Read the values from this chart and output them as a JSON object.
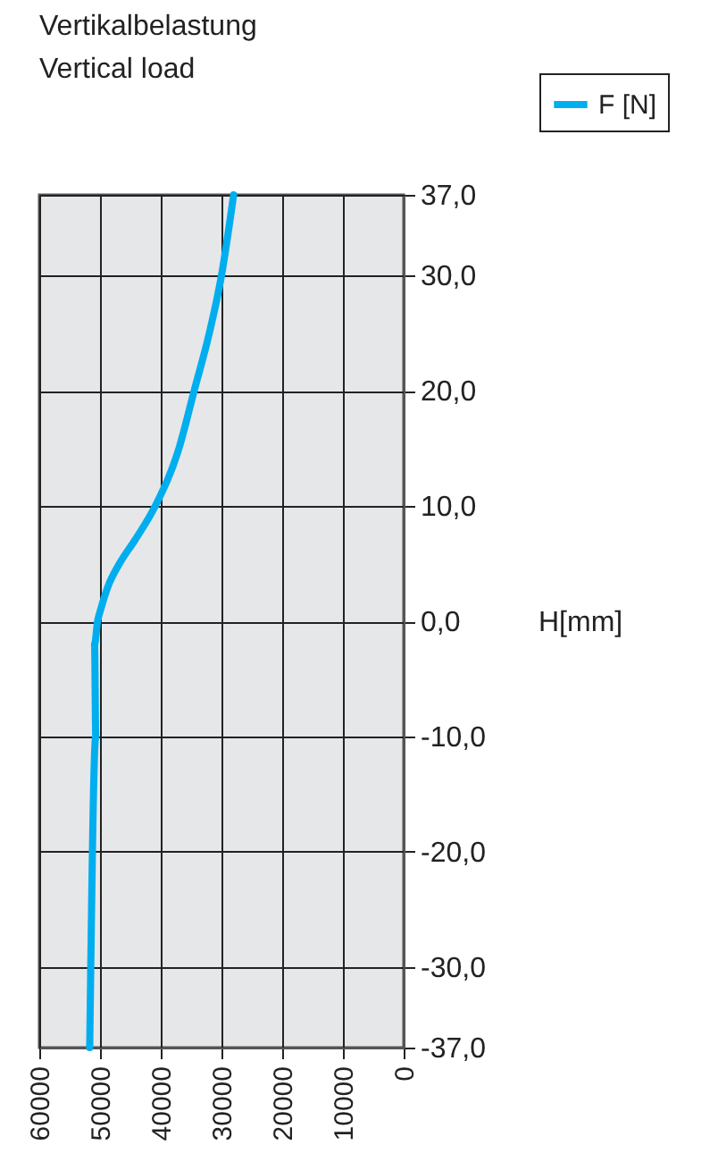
{
  "chart_data": {
    "type": "line",
    "title": "Vertikalbelastung",
    "subtitle": "Vertical load",
    "ylabel": "H[mm]",
    "x": [
      28000,
      30000,
      32000,
      34500,
      37000,
      40900,
      44300,
      46800,
      48700,
      49900,
      50400,
      50900,
      50700,
      51700
    ],
    "series": [
      {
        "name": "F [N]",
        "color": "#00aeef",
        "values": [
          37,
          30,
          25,
          20,
          15,
          10,
          7,
          5,
          3,
          1,
          0,
          -2,
          -10,
          -37
        ]
      }
    ],
    "xlim": [
      60000,
      0
    ],
    "xticks": [
      60000,
      50000,
      40000,
      30000,
      20000,
      10000,
      0
    ],
    "ylim": [
      -37,
      37
    ],
    "yticks": [
      {
        "value": 37,
        "label": "37,0"
      },
      {
        "value": 30,
        "label": "30,0"
      },
      {
        "value": 20,
        "label": "20,0"
      },
      {
        "value": 10,
        "label": "10,0"
      },
      {
        "value": 0,
        "label": "0,0"
      },
      {
        "value": -10,
        "label": "-10,0"
      },
      {
        "value": -20,
        "label": "-20,0"
      },
      {
        "value": -30,
        "label": "-30,0"
      },
      {
        "value": -37,
        "label": "-37,0"
      }
    ],
    "grid": true,
    "legend": "top right"
  }
}
